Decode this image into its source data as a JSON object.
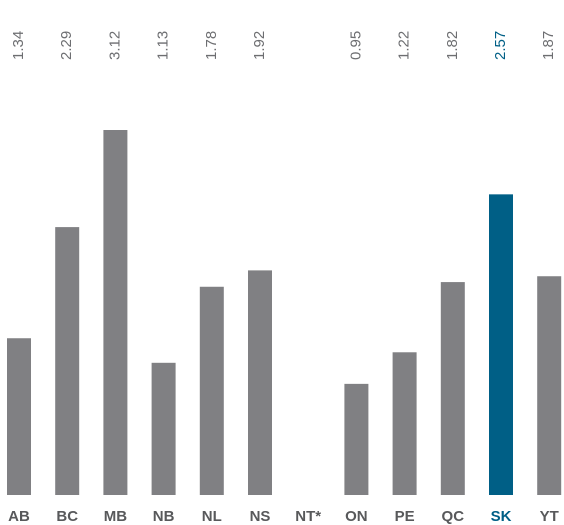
{
  "chart_data": {
    "type": "bar",
    "categories": [
      "AB",
      "BC",
      "MB",
      "NB",
      "NL",
      "NS",
      "NT*",
      "ON",
      "PE",
      "QC",
      "SK",
      "YT"
    ],
    "values": [
      1.34,
      2.29,
      3.12,
      1.13,
      1.78,
      1.92,
      null,
      0.95,
      1.22,
      1.82,
      2.57,
      1.87
    ],
    "colors": [
      "#808083",
      "#808083",
      "#808083",
      "#808083",
      "#808083",
      "#808083",
      "#808083",
      "#808083",
      "#808083",
      "#808083",
      "#005f86",
      "#808083"
    ]
  }
}
